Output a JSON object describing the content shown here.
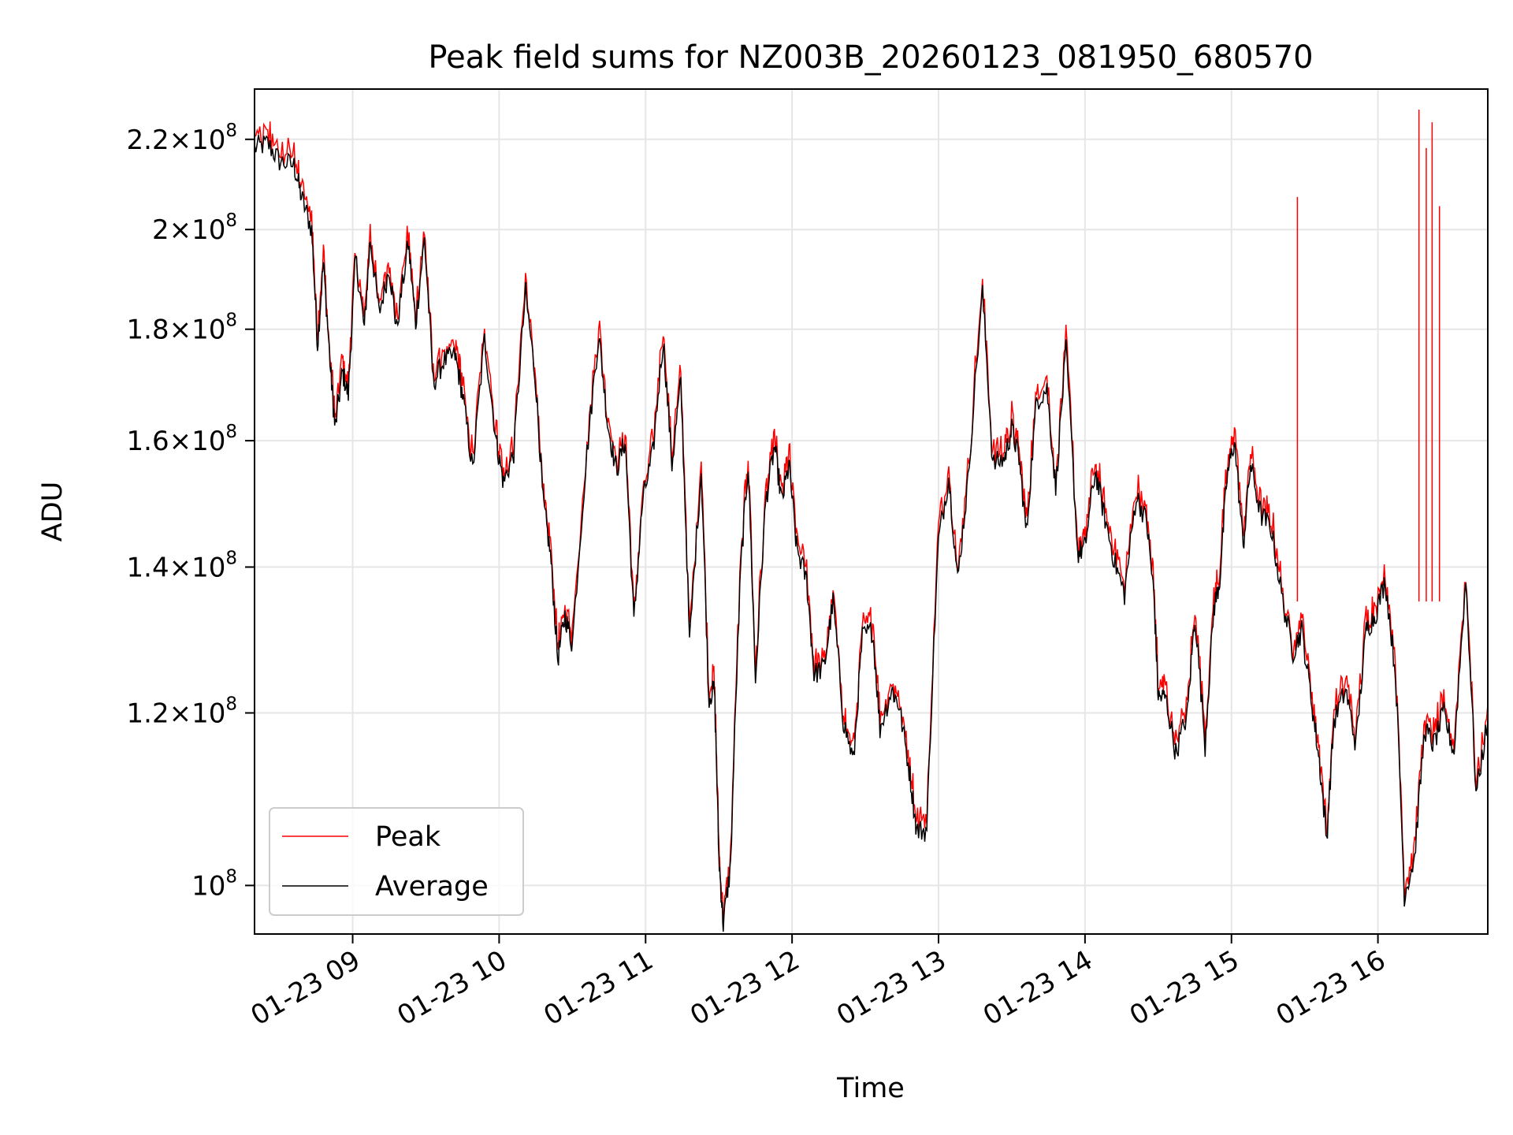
{
  "chart_data": {
    "type": "line",
    "title": "Peak field sums for NZ003B_20260123_081950_680570",
    "xlabel": "Time",
    "ylabel": "ADU",
    "yscale": "log",
    "xlim_hours": [
      8.33,
      16.75
    ],
    "ylim": [
      95000000,
      232000000
    ],
    "grid": true,
    "legend_position": "lower-left",
    "x_ticks": [
      {
        "hour": 9,
        "label": "01-23 09"
      },
      {
        "hour": 10,
        "label": "01-23 10"
      },
      {
        "hour": 11,
        "label": "01-23 11"
      },
      {
        "hour": 12,
        "label": "01-23 12"
      },
      {
        "hour": 13,
        "label": "01-23 13"
      },
      {
        "hour": 14,
        "label": "01-23 14"
      },
      {
        "hour": 15,
        "label": "01-23 15"
      },
      {
        "hour": 16,
        "label": "01-23 16"
      }
    ],
    "y_ticks": [
      {
        "value": 100000000,
        "mantissa": "",
        "exponent": "8"
      },
      {
        "value": 120000000,
        "mantissa": "1.2",
        "exponent": "8"
      },
      {
        "value": 140000000,
        "mantissa": "1.4",
        "exponent": "8"
      },
      {
        "value": 160000000,
        "mantissa": "1.6",
        "exponent": "8"
      },
      {
        "value": 180000000,
        "mantissa": "1.8",
        "exponent": "8"
      },
      {
        "value": 200000000,
        "mantissa": "2",
        "exponent": "8"
      },
      {
        "value": 220000000,
        "mantissa": "2.2",
        "exponent": "8"
      }
    ],
    "series": [
      {
        "name": "Average",
        "color": "#000000",
        "points": [
          [
            8.33,
            218000000.0
          ],
          [
            8.42,
            219000000.0
          ],
          [
            8.5,
            215000000.0
          ],
          [
            8.6,
            214000000.0
          ],
          [
            8.65,
            207000000.0
          ],
          [
            8.72,
            200000000.0
          ],
          [
            8.76,
            177000000.0
          ],
          [
            8.8,
            193000000.0
          ],
          [
            8.85,
            172000000.0
          ],
          [
            8.88,
            162000000.0
          ],
          [
            8.93,
            172000000.0
          ],
          [
            8.97,
            168000000.0
          ],
          [
            9.02,
            194000000.0
          ],
          [
            9.08,
            180000000.0
          ],
          [
            9.12,
            198000000.0
          ],
          [
            9.18,
            183000000.0
          ],
          [
            9.25,
            192000000.0
          ],
          [
            9.3,
            180000000.0
          ],
          [
            9.38,
            197000000.0
          ],
          [
            9.43,
            181000000.0
          ],
          [
            9.49,
            198000000.0
          ],
          [
            9.55,
            170000000.0
          ],
          [
            9.62,
            174000000.0
          ],
          [
            9.7,
            175000000.0
          ],
          [
            9.75,
            168000000.0
          ],
          [
            9.82,
            155000000.0
          ],
          [
            9.9,
            178000000.0
          ],
          [
            9.98,
            160000000.0
          ],
          [
            10.03,
            153000000.0
          ],
          [
            10.1,
            158000000.0
          ],
          [
            10.18,
            187000000.0
          ],
          [
            10.25,
            170000000.0
          ],
          [
            10.3,
            150000000.0
          ],
          [
            10.35,
            142000000.0
          ],
          [
            10.4,
            127000000.0
          ],
          [
            10.45,
            133000000.0
          ],
          [
            10.5,
            129000000.0
          ],
          [
            10.6,
            158000000.0
          ],
          [
            10.68,
            179000000.0
          ],
          [
            10.74,
            163000000.0
          ],
          [
            10.8,
            155000000.0
          ],
          [
            10.86,
            160000000.0
          ],
          [
            10.92,
            132000000.0
          ],
          [
            10.98,
            150000000.0
          ],
          [
            11.05,
            158000000.0
          ],
          [
            11.12,
            178000000.0
          ],
          [
            11.18,
            156000000.0
          ],
          [
            11.24,
            170000000.0
          ],
          [
            11.3,
            129000000.0
          ],
          [
            11.38,
            155000000.0
          ],
          [
            11.43,
            122000000.0
          ],
          [
            11.47,
            123000000.0
          ],
          [
            11.5,
            103000000.0
          ],
          [
            11.53,
            96000000.0
          ],
          [
            11.58,
            102000000.0
          ],
          [
            11.65,
            140000000.0
          ],
          [
            11.7,
            156000000.0
          ],
          [
            11.75,
            124000000.0
          ],
          [
            11.82,
            150000000.0
          ],
          [
            11.88,
            159000000.0
          ],
          [
            11.93,
            150000000.0
          ],
          [
            11.98,
            156000000.0
          ],
          [
            12.03,
            143000000.0
          ],
          [
            12.1,
            138000000.0
          ],
          [
            12.15,
            125000000.0
          ],
          [
            12.22,
            126000000.0
          ],
          [
            12.28,
            135000000.0
          ],
          [
            12.35,
            119000000.0
          ],
          [
            12.42,
            114000000.0
          ],
          [
            12.48,
            130000000.0
          ],
          [
            12.55,
            131000000.0
          ],
          [
            12.6,
            118000000.0
          ],
          [
            12.68,
            123000000.0
          ],
          [
            12.73,
            121000000.0
          ],
          [
            12.8,
            113000000.0
          ],
          [
            12.85,
            106000000.0
          ],
          [
            12.92,
            106000000.0
          ],
          [
            13.0,
            144000000.0
          ],
          [
            13.07,
            154000000.0
          ],
          [
            13.13,
            138000000.0
          ],
          [
            13.2,
            153000000.0
          ],
          [
            13.3,
            187000000.0
          ],
          [
            13.37,
            156000000.0
          ],
          [
            13.45,
            157000000.0
          ],
          [
            13.5,
            162000000.0
          ],
          [
            13.55,
            157000000.0
          ],
          [
            13.6,
            145000000.0
          ],
          [
            13.67,
            167000000.0
          ],
          [
            13.74,
            169000000.0
          ],
          [
            13.8,
            152000000.0
          ],
          [
            13.87,
            176000000.0
          ],
          [
            13.95,
            142000000.0
          ],
          [
            14.0,
            143000000.0
          ],
          [
            14.07,
            155000000.0
          ],
          [
            14.13,
            148000000.0
          ],
          [
            14.2,
            141000000.0
          ],
          [
            14.27,
            136000000.0
          ],
          [
            14.35,
            151000000.0
          ],
          [
            14.42,
            147000000.0
          ],
          [
            14.47,
            136000000.0
          ],
          [
            14.5,
            122000000.0
          ],
          [
            14.55,
            122000000.0
          ],
          [
            14.62,
            115000000.0
          ],
          [
            14.7,
            120000000.0
          ],
          [
            14.75,
            133000000.0
          ],
          [
            14.82,
            116000000.0
          ],
          [
            14.88,
            134000000.0
          ],
          [
            14.92,
            138000000.0
          ],
          [
            14.97,
            154000000.0
          ],
          [
            15.02,
            160000000.0
          ],
          [
            15.08,
            143000000.0
          ],
          [
            15.13,
            156000000.0
          ],
          [
            15.2,
            148000000.0
          ],
          [
            15.27,
            146000000.0
          ],
          [
            15.35,
            135000000.0
          ],
          [
            15.42,
            128000000.0
          ],
          [
            15.48,
            131000000.0
          ],
          [
            15.55,
            121000000.0
          ],
          [
            15.6,
            114000000.0
          ],
          [
            15.65,
            105000000.0
          ],
          [
            15.7,
            119000000.0
          ],
          [
            15.78,
            123000000.0
          ],
          [
            15.85,
            116000000.0
          ],
          [
            15.92,
            131000000.0
          ],
          [
            15.98,
            133000000.0
          ],
          [
            16.05,
            138000000.0
          ],
          [
            16.12,
            125000000.0
          ],
          [
            16.18,
            99000000.0
          ],
          [
            16.25,
            103000000.0
          ],
          [
            16.32,
            118000000.0
          ],
          [
            16.38,
            116000000.0
          ],
          [
            16.45,
            120000000.0
          ],
          [
            16.52,
            115000000.0
          ],
          [
            16.6,
            138000000.0
          ],
          [
            16.67,
            110000000.0
          ],
          [
            16.75,
            119000000.0
          ]
        ]
      },
      {
        "name": "Peak",
        "color": "#ff0000",
        "points": []
      }
    ]
  }
}
